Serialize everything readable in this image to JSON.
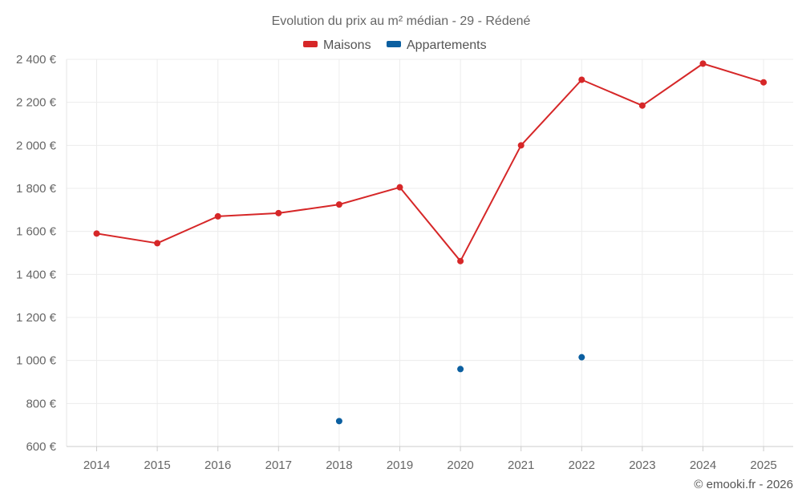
{
  "chart_data": {
    "type": "line",
    "title": "Evolution du prix au m² médian - 29 - Rédené",
    "categories": [
      "2014",
      "2015",
      "2016",
      "2017",
      "2018",
      "2019",
      "2020",
      "2021",
      "2022",
      "2023",
      "2024",
      "2025"
    ],
    "series": [
      {
        "name": "Maisons",
        "color": "#d62728",
        "values": [
          1590,
          1545,
          1670,
          1685,
          1725,
          1805,
          1462,
          2000,
          2305,
          2185,
          2380,
          2293
        ]
      },
      {
        "name": "Appartements",
        "color": "#0b5fa0",
        "values": [
          null,
          null,
          null,
          null,
          718,
          null,
          960,
          null,
          1015,
          null,
          null,
          null
        ]
      }
    ],
    "ylim": [
      600,
      2400
    ],
    "yticks": [
      600,
      800,
      1000,
      1200,
      1400,
      1600,
      1800,
      2000,
      2200,
      2400
    ],
    "ytick_labels": [
      "600 €",
      "800 €",
      "1 000 €",
      "1 200 €",
      "1 400 €",
      "1 600 €",
      "1 800 €",
      "2 000 €",
      "2 200 €",
      "2 400 €"
    ],
    "grid": true,
    "legend_position": "top-center",
    "xlabel": "",
    "ylabel": ""
  },
  "credit": "© emooki.fr - 2026"
}
